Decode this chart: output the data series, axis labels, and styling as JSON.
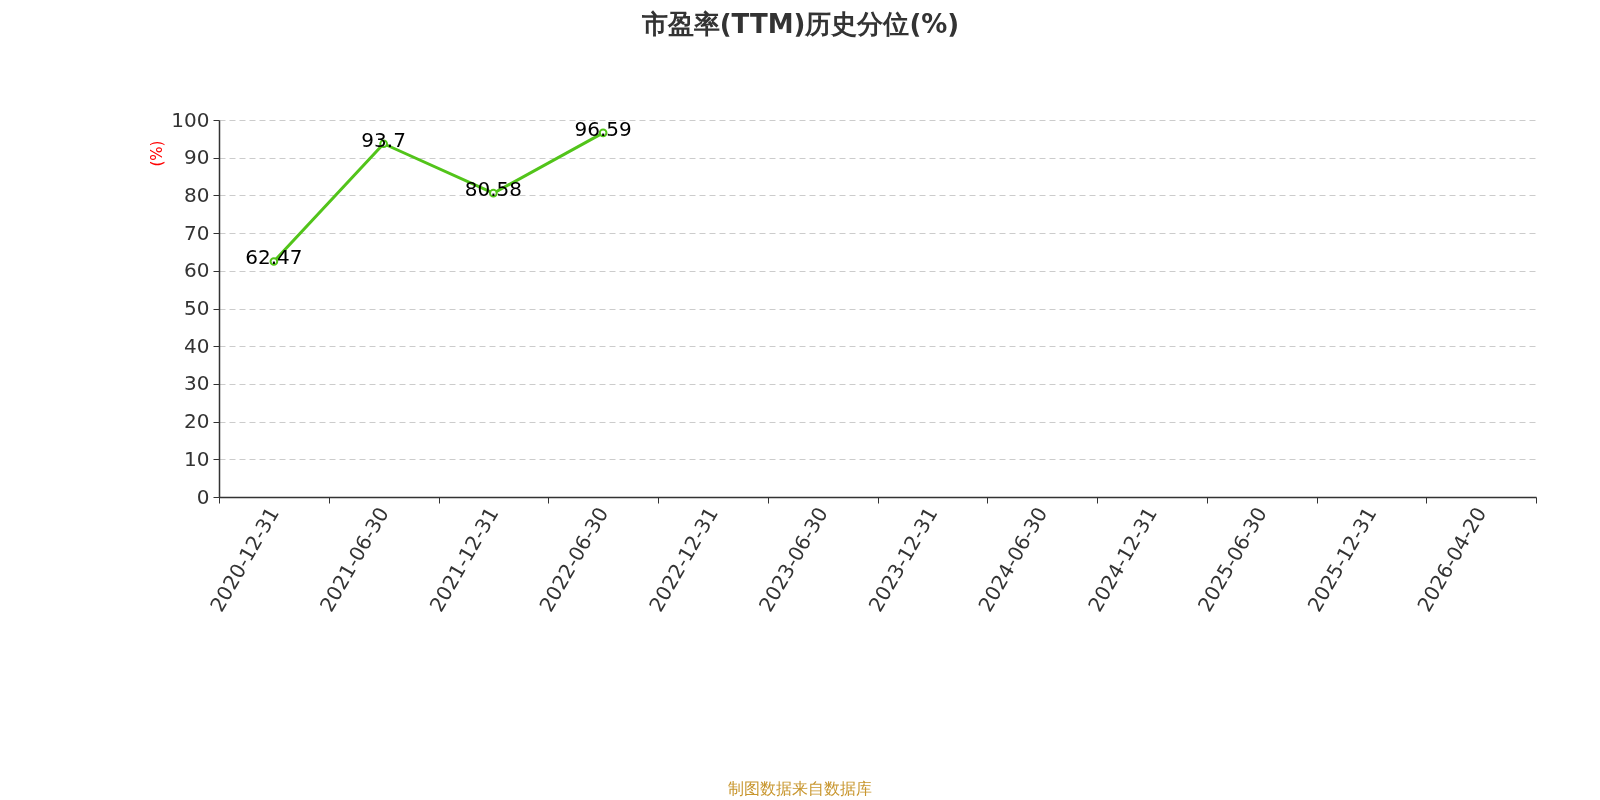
{
  "chart_data": {
    "type": "line",
    "title": "市盈率(TTM)历史分位(%)",
    "ylabel": "(%)",
    "categories": [
      "2020-12-31",
      "2021-06-30",
      "2021-12-31",
      "2022-06-30",
      "2022-12-31",
      "2023-06-30",
      "2023-12-31",
      "2024-06-30",
      "2024-12-31",
      "2025-06-30",
      "2025-12-31",
      "2026-04-20"
    ],
    "series": [
      {
        "color": "#52c41a",
        "values": [
          62.47,
          93.7,
          80.58,
          96.59,
          null,
          null,
          null,
          null,
          null,
          null,
          null,
          null
        ]
      }
    ],
    "ylim": [
      0,
      100
    ],
    "yticks": [
      0,
      10,
      20,
      30,
      40,
      50,
      60,
      70,
      80,
      90,
      100
    ],
    "grid": "y",
    "data_labels": true,
    "marker": "circle",
    "line_style": "solid",
    "annotations": [
      "制图数据来自数据库"
    ]
  }
}
